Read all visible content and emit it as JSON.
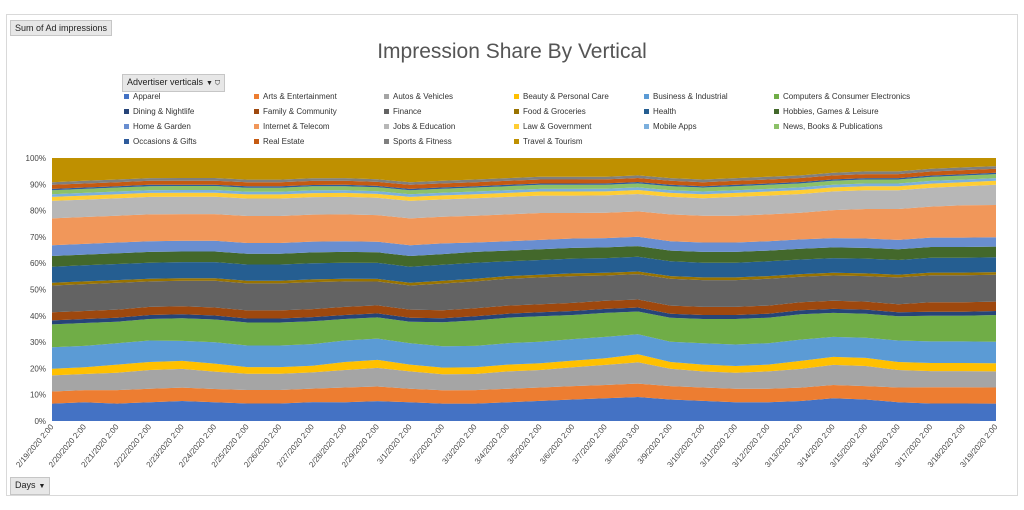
{
  "pivot": {
    "value_field": "Sum of Ad impressions",
    "filter_field": "Advertiser verticals",
    "axis_field": "Days"
  },
  "chart_data": {
    "type": "area",
    "stacked": "100%",
    "title": "Impression Share By Vertical",
    "legend_position": "top",
    "y_ticks": [
      "0%",
      "10%",
      "20%",
      "30%",
      "40%",
      "50%",
      "60%",
      "70%",
      "80%",
      "90%",
      "100%"
    ],
    "ylim": [
      0,
      100
    ],
    "x": [
      "2/19/2020 2:00",
      "2/20/2020 2:00",
      "2/21/2020 2:00",
      "2/22/2020 2:00",
      "2/23/2020 2:00",
      "2/24/2020 2:00",
      "2/25/2020 2:00",
      "2/26/2020 2:00",
      "2/27/2020 2:00",
      "2/28/2020 2:00",
      "2/29/2020 2:00",
      "3/1/2020 2:00",
      "3/2/2020 2:00",
      "3/3/2020 2:00",
      "3/4/2020 2:00",
      "3/5/2020 2:00",
      "3/6/2020 2:00",
      "3/7/2020 2:00",
      "3/8/2020 3:00",
      "3/9/2020 2:00",
      "3/10/2020 2:00",
      "3/11/2020 2:00",
      "3/12/2020 2:00",
      "3/13/2020 2:00",
      "3/14/2020 2:00",
      "3/15/2020 2:00",
      "3/16/2020 2:00",
      "3/17/2020 2:00",
      "3/18/2020 2:00",
      "3/19/2020 2:00"
    ],
    "series": [
      {
        "name": "Apparel",
        "color": "#4472c4",
        "values": [
          6.5,
          7,
          6.5,
          7,
          7.5,
          7,
          6.5,
          6.5,
          7,
          7,
          7.5,
          7,
          6.5,
          6.5,
          7,
          7.5,
          8,
          8.5,
          9,
          8,
          7.5,
          7,
          7,
          7.5,
          8.5,
          8,
          7,
          6.5,
          6.5,
          6.5
        ]
      },
      {
        "name": "Arts & Entertainment",
        "color": "#ed7d31",
        "values": [
          4.5,
          4.5,
          5,
          5,
          5,
          5,
          5,
          5,
          5,
          5.5,
          5.5,
          5,
          5,
          5,
          5,
          5,
          5,
          5,
          5,
          5,
          5,
          5,
          5,
          5,
          5,
          5,
          5.5,
          6,
          6,
          6
        ]
      },
      {
        "name": "Autos & Vehicles",
        "color": "#a5a5a5",
        "values": [
          6,
          6,
          6.5,
          7,
          7,
          6.5,
          6,
          6,
          6,
          6.5,
          7,
          6.5,
          6,
          6,
          6.5,
          6.5,
          7,
          7.5,
          8,
          6.5,
          6,
          6,
          6.5,
          7,
          7.5,
          7.5,
          6.5,
          6,
          6,
          6
        ]
      },
      {
        "name": "Beauty & Personal Care",
        "color": "#ffc000",
        "values": [
          2.5,
          2.5,
          3,
          3,
          3,
          3,
          2.5,
          2.5,
          2.5,
          3,
          3,
          2.5,
          2.5,
          2.5,
          2.5,
          2.5,
          2.5,
          2.5,
          3,
          2.5,
          2.5,
          2.5,
          2.5,
          3,
          3,
          3,
          3,
          3,
          3,
          3
        ]
      },
      {
        "name": "Business & Industrial",
        "color": "#5b9bd5",
        "values": [
          8,
          8,
          8,
          8,
          7.5,
          8,
          8,
          8,
          8,
          8,
          8,
          8,
          8,
          8,
          8,
          8,
          8,
          8,
          7.5,
          7.5,
          8,
          8,
          8,
          8,
          7.5,
          7.5,
          8,
          8,
          8,
          8
        ]
      },
      {
        "name": "Computers & Consumer Electronics",
        "color": "#70ad47",
        "values": [
          8.5,
          8.5,
          8,
          8,
          8.5,
          8.5,
          8.5,
          8.5,
          8.5,
          8,
          8,
          8,
          9,
          9.5,
          9.5,
          9.5,
          9,
          9,
          8.5,
          9,
          9,
          9.5,
          9.5,
          9.5,
          9,
          9,
          9,
          9.5,
          9.5,
          10
        ]
      },
      {
        "name": "Dining & Nightlife",
        "color": "#264478",
        "values": [
          1.5,
          1.5,
          1.5,
          1.5,
          1.5,
          1.5,
          1.5,
          1.5,
          1.5,
          1.5,
          1.5,
          1.5,
          1.5,
          1.5,
          1.5,
          1.5,
          1.5,
          1.5,
          1.5,
          1.5,
          1.5,
          1.5,
          1.5,
          1.5,
          1.5,
          1.5,
          1.5,
          1.5,
          1.5,
          1.5
        ]
      },
      {
        "name": "Family & Community",
        "color": "#9e480e",
        "values": [
          3,
          3,
          3,
          3,
          3,
          3,
          3,
          3,
          3,
          3,
          3,
          3,
          3,
          3,
          3,
          3,
          3,
          3,
          3,
          3,
          3,
          3,
          3,
          3,
          3,
          3,
          3,
          3.5,
          3.5,
          3.5
        ]
      },
      {
        "name": "Finance",
        "color": "#636363",
        "values": [
          10,
          10,
          10,
          9.5,
          9.5,
          10,
          10,
          10,
          10,
          9.5,
          9,
          9,
          10,
          10,
          10,
          10,
          10,
          9.5,
          9.5,
          10,
          10,
          10,
          10,
          9.5,
          9.5,
          9.5,
          10,
          10,
          10,
          10
        ]
      },
      {
        "name": "Food & Groceries",
        "color": "#997300",
        "values": [
          1,
          1,
          1,
          1,
          1,
          1,
          1,
          1,
          1,
          1,
          1,
          1,
          1,
          1,
          1,
          1,
          1,
          1,
          1,
          1,
          1,
          1,
          1,
          1,
          1,
          1,
          1,
          1,
          1,
          1
        ]
      },
      {
        "name": "Health",
        "color": "#255e91",
        "values": [
          6,
          6,
          6,
          6,
          6,
          6,
          6,
          6,
          6,
          6,
          6,
          6,
          6,
          6,
          5.5,
          5.5,
          5.5,
          5.5,
          5.5,
          5.5,
          5.5,
          5.5,
          5.5,
          5.5,
          5.5,
          5.5,
          5.5,
          5.5,
          5.5,
          5.5
        ]
      },
      {
        "name": "Hobbies, Games & Leisure",
        "color": "#43682b",
        "values": [
          4,
          4,
          4,
          4,
          4,
          4,
          4,
          4,
          4,
          4,
          4,
          4,
          4,
          4,
          4,
          4,
          4,
          4,
          4,
          4,
          4,
          4,
          4,
          4,
          4,
          4,
          4,
          4,
          4,
          4
        ]
      },
      {
        "name": "Home & Garden",
        "color": "#698ed0",
        "values": [
          4,
          4,
          4,
          4,
          4,
          4,
          4,
          4,
          4,
          4,
          4,
          4,
          4,
          3.5,
          3.5,
          3.5,
          3.5,
          3.5,
          3.5,
          3.5,
          3.5,
          3.5,
          3.5,
          3.5,
          3.5,
          3.5,
          3.5,
          3.5,
          3.5,
          3.5
        ]
      },
      {
        "name": "Internet & Telecom",
        "color": "#f1975a",
        "values": [
          10,
          10,
          10,
          10,
          10,
          10,
          10,
          10,
          10,
          10,
          10,
          10,
          10,
          10,
          10,
          10,
          9.5,
          9.5,
          9.5,
          10,
          10,
          10,
          10,
          10,
          10.5,
          11,
          11.5,
          11.5,
          12,
          12
        ]
      },
      {
        "name": "Jobs & Education",
        "color": "#b7b7b7",
        "values": [
          6.5,
          6.5,
          6.5,
          6.5,
          6.5,
          6.5,
          6.5,
          6.5,
          6.5,
          6.5,
          6.5,
          6.5,
          6.5,
          6.5,
          6.5,
          6.5,
          6.5,
          6.5,
          6.5,
          6.5,
          6.5,
          7,
          7,
          7,
          7,
          7,
          7,
          7,
          7,
          7.5
        ]
      },
      {
        "name": "Law & Government",
        "color": "#ffcd33",
        "values": [
          1.5,
          1.5,
          1.5,
          1.5,
          1.5,
          1.5,
          1.5,
          1.5,
          1.5,
          1.5,
          1.5,
          1.5,
          1.5,
          1.5,
          1.5,
          1.5,
          1.5,
          1.5,
          1.5,
          1.5,
          1.5,
          1.5,
          1.5,
          1.5,
          1.5,
          1.5,
          1.5,
          1.5,
          1.5,
          1.5
        ]
      },
      {
        "name": "Mobile Apps",
        "color": "#7cafdd",
        "values": [
          1,
          1,
          1,
          1,
          1,
          1,
          1,
          1,
          1,
          1,
          1,
          1,
          1,
          1,
          1,
          1,
          1,
          1,
          1,
          1,
          1,
          1,
          1,
          1,
          1,
          1,
          1,
          1,
          1,
          1
        ]
      },
      {
        "name": "News, Books & Publications",
        "color": "#8cc168",
        "values": [
          1.5,
          1.5,
          1.5,
          1.5,
          1.5,
          1.5,
          1.5,
          1.5,
          1.5,
          1.5,
          1.5,
          1.5,
          1.5,
          1.5,
          1.5,
          1.5,
          1.5,
          1.5,
          1.5,
          1.5,
          1.5,
          1.5,
          1.5,
          1.5,
          1.5,
          1.5,
          1.5,
          1.5,
          1.5,
          1.5
        ]
      },
      {
        "name": "Occasions & Gifts",
        "color": "#2e5b9b",
        "values": [
          0.5,
          0.5,
          0.5,
          0.5,
          0.5,
          0.5,
          0.5,
          0.5,
          0.5,
          0.5,
          0.5,
          0.5,
          0.5,
          0.5,
          0.5,
          0.5,
          0.5,
          0.5,
          0.5,
          0.5,
          0.5,
          0.5,
          0.5,
          0.5,
          0.5,
          0.5,
          0.5,
          0.5,
          0.5,
          0.5
        ]
      },
      {
        "name": "Real Estate",
        "color": "#c55a11",
        "values": [
          1.5,
          1.5,
          1.5,
          1.5,
          1.5,
          1.5,
          1.5,
          1.5,
          1.5,
          1.5,
          1.5,
          1.5,
          1.5,
          1.5,
          1.5,
          1.5,
          1.5,
          1.5,
          1.5,
          1.5,
          1.5,
          1.5,
          1.5,
          1.5,
          1.5,
          1.5,
          1.5,
          1.5,
          1.5,
          1.5
        ]
      },
      {
        "name": "Sports & Fitness",
        "color": "#7f7f7f",
        "values": [
          1,
          1,
          1,
          1,
          1,
          1,
          1,
          1,
          1,
          1,
          1,
          1,
          1,
          1,
          1,
          1,
          1,
          1,
          1,
          1,
          1,
          1,
          1,
          1,
          1,
          1,
          1,
          1,
          1,
          1
        ]
      },
      {
        "name": "Travel & Tourism",
        "color": "#bf9000",
        "values": [
          9,
          8.5,
          8,
          7.5,
          7.5,
          7.5,
          8,
          8,
          7.5,
          7.5,
          8,
          9,
          8.5,
          8,
          7.5,
          7,
          7,
          7,
          6.5,
          7.5,
          8,
          7.5,
          7,
          6.5,
          5.5,
          5,
          5,
          4,
          3.5,
          3
        ]
      }
    ]
  }
}
